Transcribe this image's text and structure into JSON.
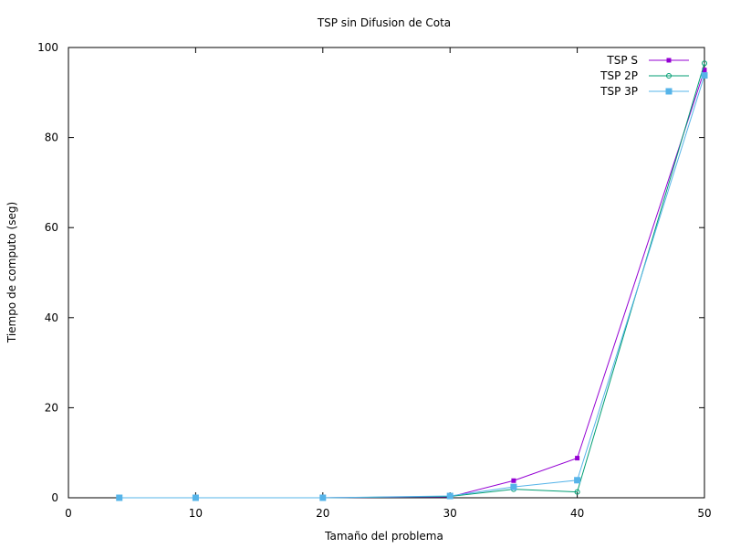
{
  "chart_data": {
    "type": "line",
    "title": "TSP sin Difusion de Cota",
    "xlabel": "Tamaño del problema",
    "ylabel": "Tiempo de computo (seg)",
    "xlim": [
      0,
      50
    ],
    "ylim": [
      0,
      100
    ],
    "xticks": [
      0,
      10,
      20,
      30,
      40,
      50
    ],
    "yticks": [
      0,
      20,
      40,
      60,
      80,
      100
    ],
    "grid": false,
    "legend_position": "top-right",
    "series": [
      {
        "name": "TSP S",
        "color": "#9400d3",
        "marker": "filled-square-small",
        "points": [
          [
            4,
            0
          ],
          [
            10,
            0
          ],
          [
            20,
            0
          ],
          [
            30,
            0.2
          ],
          [
            35,
            3.8
          ],
          [
            40,
            8.8
          ],
          [
            50,
            95
          ]
        ]
      },
      {
        "name": "TSP 2P",
        "color": "#009e73",
        "marker": "open-circle",
        "points": [
          [
            4,
            0
          ],
          [
            10,
            0
          ],
          [
            20,
            0
          ],
          [
            30,
            0.3
          ],
          [
            35,
            1.9
          ],
          [
            40,
            1.3
          ],
          [
            50,
            96.5
          ]
        ]
      },
      {
        "name": "TSP 3P",
        "color": "#56b4e9",
        "marker": "filled-square",
        "points": [
          [
            4,
            0
          ],
          [
            10,
            0
          ],
          [
            20,
            0
          ],
          [
            30,
            0.4
          ],
          [
            35,
            2.4
          ],
          [
            40,
            3.9
          ],
          [
            50,
            93.8
          ]
        ]
      }
    ]
  }
}
